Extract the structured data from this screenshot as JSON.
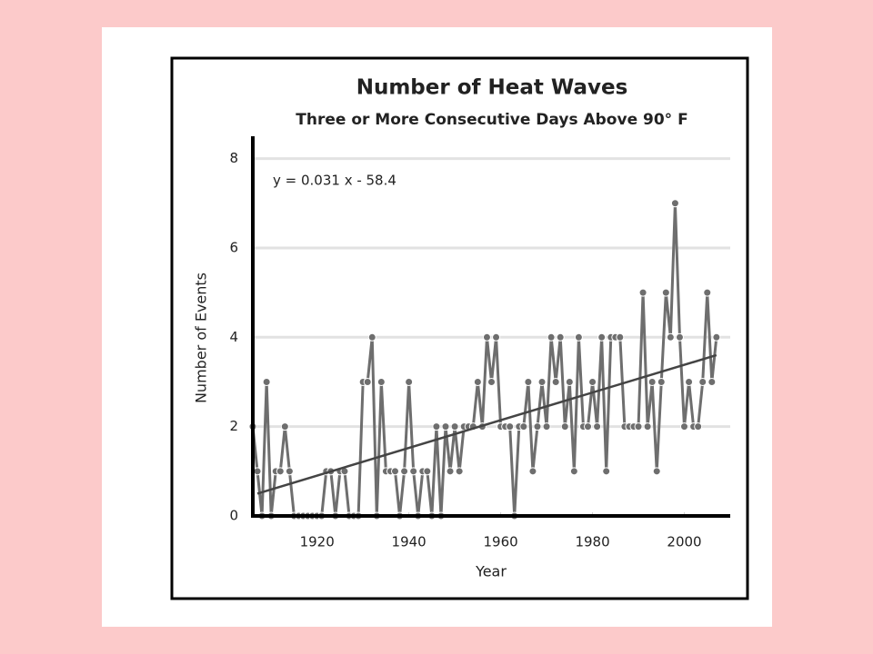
{
  "chart_data": {
    "type": "line",
    "title": "Number of Heat Waves",
    "subtitle": "Three or More Consecutive Days Above 90° F",
    "annotation": "y = 0.031 x - 58.4",
    "x_label": "Year",
    "y_label": "Number of Events",
    "x": [
      1906,
      1907,
      1908,
      1909,
      1910,
      1911,
      1912,
      1913,
      1914,
      1915,
      1916,
      1917,
      1918,
      1919,
      1920,
      1921,
      1922,
      1923,
      1924,
      1925,
      1926,
      1927,
      1928,
      1929,
      1930,
      1931,
      1932,
      1933,
      1934,
      1935,
      1936,
      1937,
      1938,
      1939,
      1940,
      1941,
      1942,
      1943,
      1944,
      1945,
      1946,
      1947,
      1948,
      1949,
      1950,
      1951,
      1952,
      1953,
      1954,
      1955,
      1956,
      1957,
      1958,
      1959,
      1960,
      1961,
      1962,
      1963,
      1964,
      1965,
      1966,
      1967,
      1968,
      1969,
      1970,
      1971,
      1972,
      1973,
      1974,
      1975,
      1976,
      1977,
      1978,
      1979,
      1980,
      1981,
      1982,
      1983,
      1984,
      1985,
      1986,
      1987,
      1988,
      1989,
      1990,
      1991,
      1992,
      1993,
      1994,
      1995,
      1996,
      1997,
      1998,
      1999,
      2000,
      2001,
      2002,
      2003,
      2004,
      2005,
      2006,
      2007
    ],
    "series": [
      {
        "name": "Heat waves",
        "color": "#6e6e6e",
        "values": [
          2,
          1,
          0,
          3,
          0,
          1,
          1,
          2,
          1,
          0,
          0,
          0,
          0,
          0,
          0,
          0,
          1,
          1,
          0,
          1,
          1,
          0,
          0,
          0,
          3,
          3,
          4,
          0,
          3,
          1,
          1,
          1,
          0,
          1,
          3,
          1,
          0,
          1,
          1,
          0,
          2,
          0,
          2,
          1,
          2,
          1,
          2,
          2,
          2,
          3,
          2,
          4,
          3,
          4,
          2,
          2,
          2,
          0,
          2,
          2,
          3,
          1,
          2,
          3,
          2,
          4,
          3,
          4,
          2,
          3,
          1,
          4,
          2,
          2,
          3,
          2,
          4,
          1,
          4,
          4,
          4,
          2,
          2,
          2,
          2,
          5,
          2,
          3,
          1,
          3,
          5,
          4,
          7,
          4,
          2,
          3,
          2,
          2,
          3,
          5,
          3,
          4
        ]
      }
    ],
    "trend_line": {
      "color": "#444444",
      "x": [
        1907,
        2007
      ],
      "values": [
        0.5,
        3.6
      ]
    },
    "xlim": [
      1906,
      2010
    ],
    "xticks": [
      1920,
      1940,
      1960,
      1980,
      2000
    ],
    "ylim": [
      0,
      8.5
    ],
    "yticks": [
      0,
      2,
      4,
      6,
      8
    ],
    "grid": true
  }
}
